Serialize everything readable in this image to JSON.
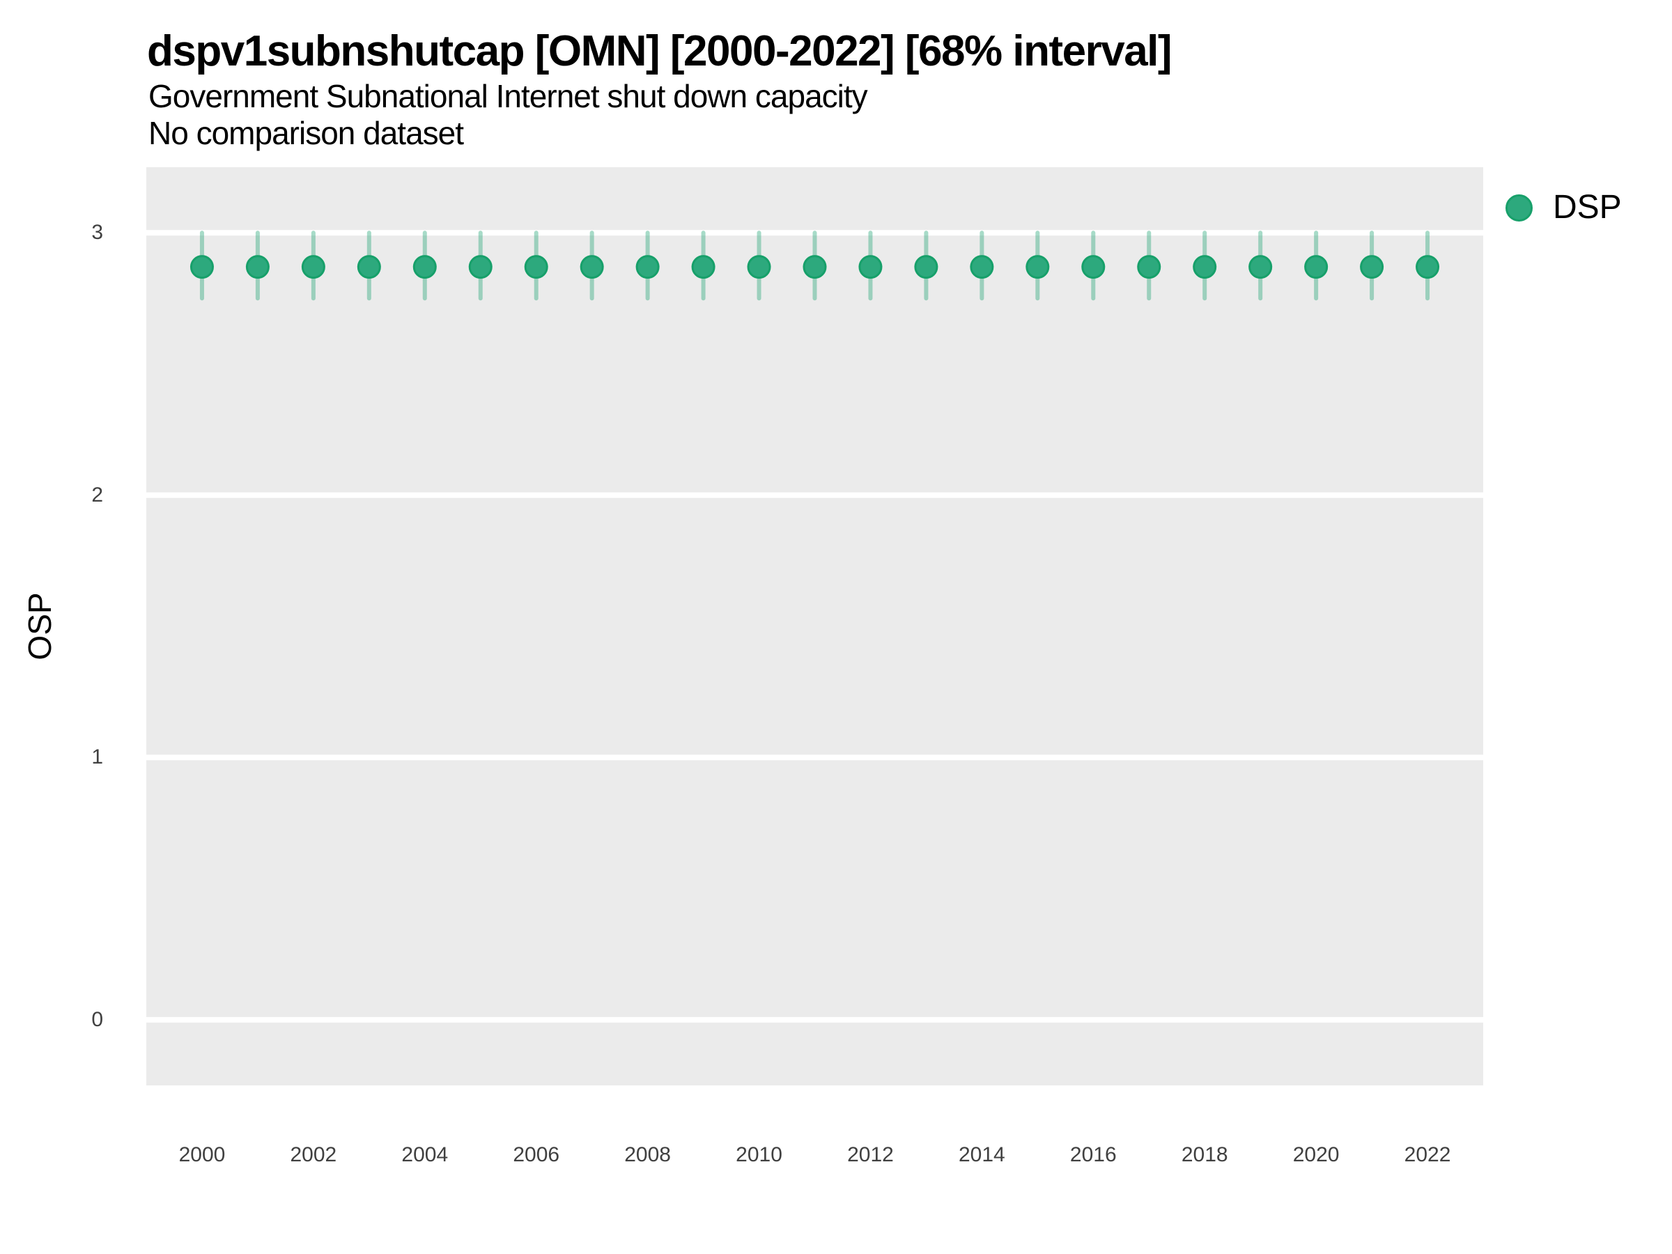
{
  "title": "dspv1subnshutcap [OMN] [2000-2022] [68% interval]",
  "subtitle": "Government Subnational Internet shut down capacity",
  "comparison_note": "No comparison dataset",
  "y_axis_title": "OSP",
  "legend": {
    "label": "DSP"
  },
  "colors": {
    "point_fill": "#2DA97D",
    "point_stroke": "#17A06A",
    "interval_bar": "rgba(45,169,125,0.42)",
    "panel_background": "#EBEBEB",
    "gridline": "#FFFFFF",
    "tick_text": "#404040"
  },
  "chart_data": {
    "type": "scatter",
    "title": "dspv1subnshutcap [OMN] [2000-2022] [68% interval]",
    "subtitle": "Government Subnational Internet shut down capacity",
    "note": "No comparison dataset",
    "country_code": "OMN",
    "interval_label": "68% interval",
    "xlabel": "",
    "ylabel": "OSP",
    "x": [
      2000,
      2001,
      2002,
      2003,
      2004,
      2005,
      2006,
      2007,
      2008,
      2009,
      2010,
      2011,
      2012,
      2013,
      2014,
      2015,
      2016,
      2017,
      2018,
      2019,
      2020,
      2021,
      2022
    ],
    "series": [
      {
        "name": "DSP",
        "values": [
          2.87,
          2.87,
          2.87,
          2.87,
          2.87,
          2.87,
          2.87,
          2.87,
          2.87,
          2.87,
          2.87,
          2.87,
          2.87,
          2.87,
          2.87,
          2.87,
          2.87,
          2.87,
          2.87,
          2.87,
          2.87,
          2.87,
          2.87
        ],
        "interval_low": [
          2.75,
          2.75,
          2.75,
          2.75,
          2.75,
          2.75,
          2.75,
          2.75,
          2.75,
          2.75,
          2.75,
          2.75,
          2.75,
          2.75,
          2.75,
          2.75,
          2.75,
          2.75,
          2.75,
          2.75,
          2.75,
          2.75,
          2.75
        ],
        "interval_high": [
          3.0,
          3.0,
          3.0,
          3.0,
          3.0,
          3.0,
          3.0,
          3.0,
          3.0,
          3.0,
          3.0,
          3.0,
          3.0,
          3.0,
          3.0,
          3.0,
          3.0,
          3.0,
          3.0,
          3.0,
          3.0,
          3.0,
          3.0
        ]
      }
    ],
    "xlim": [
      1999,
      2023
    ],
    "ylim": [
      -0.25,
      3.25
    ],
    "y_ticks": [
      0,
      1,
      2,
      3
    ],
    "x_ticks": [
      2000,
      2002,
      2004,
      2006,
      2008,
      2010,
      2012,
      2014,
      2016,
      2018,
      2020,
      2022
    ],
    "grid": "horizontal-major-only",
    "legend_position": "right-top"
  }
}
